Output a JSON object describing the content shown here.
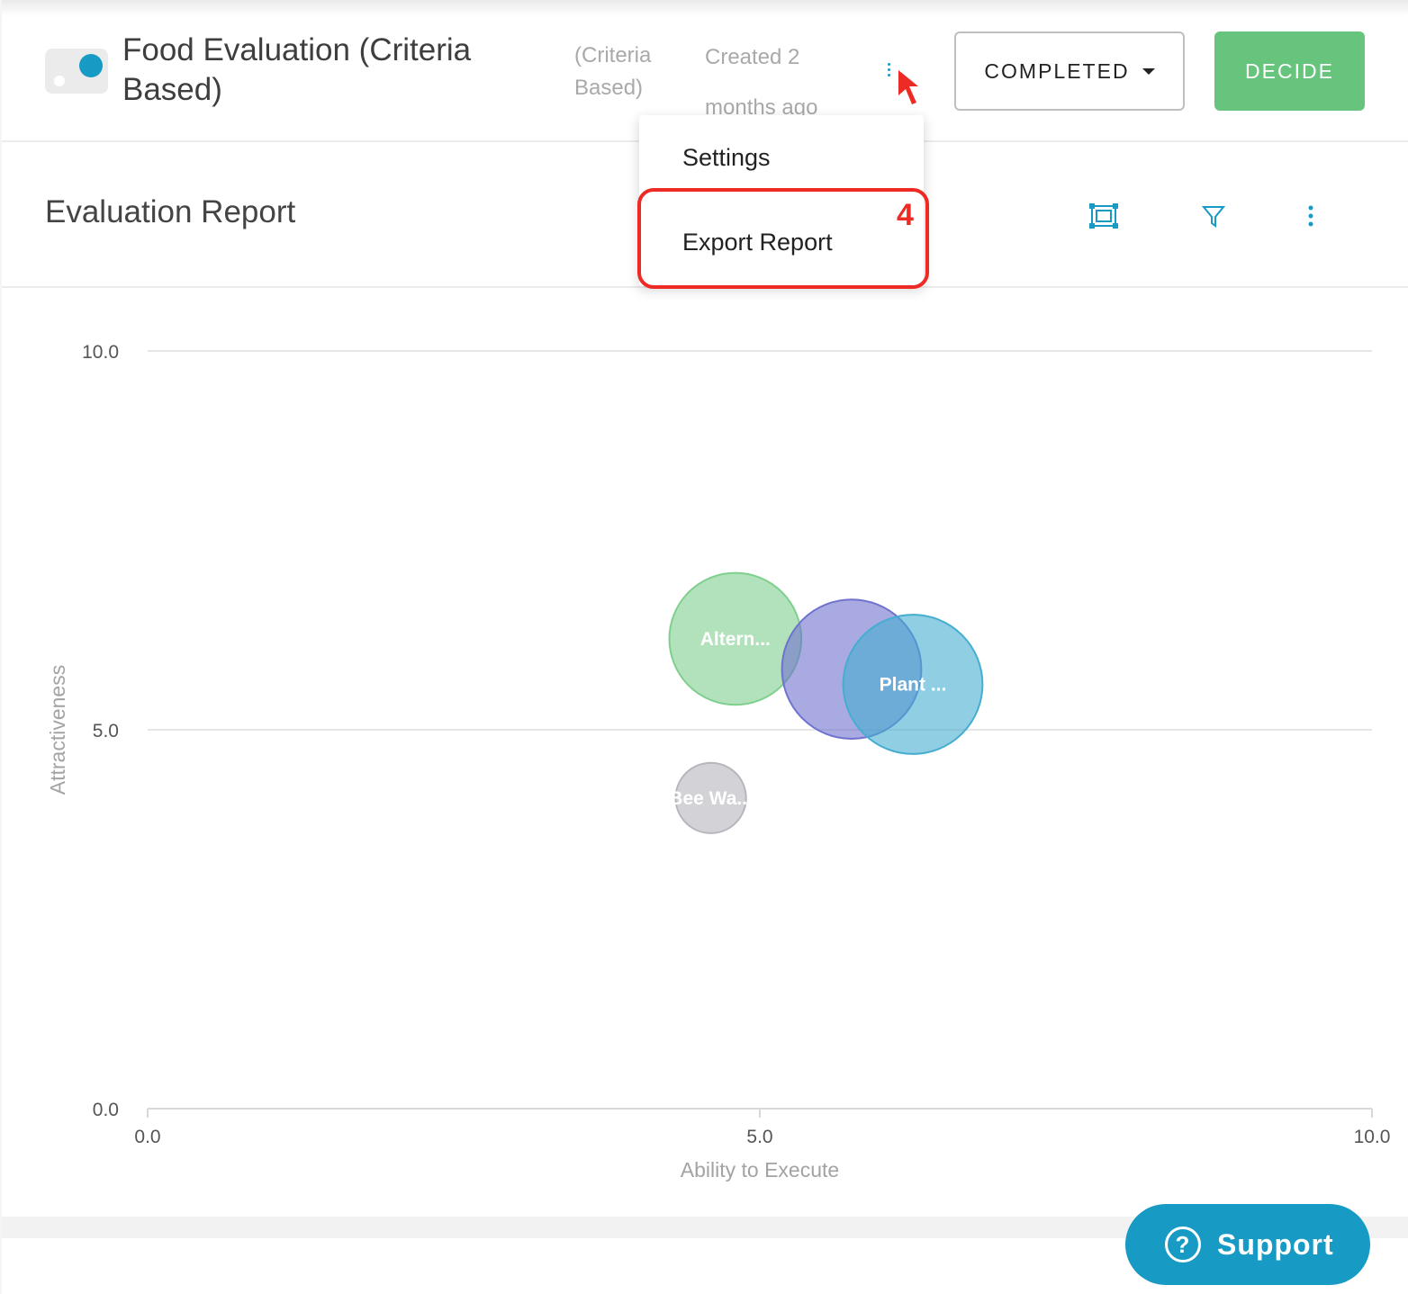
{
  "header": {
    "title": "Food Evaluation (Criteria Based)",
    "subtitle": "(Criteria Based)",
    "created": "Created 2 months ago",
    "status_button": "COMPLETED",
    "decide_button": "DECIDE"
  },
  "section": {
    "title": "Evaluation Report"
  },
  "menu": {
    "items": [
      {
        "label": "Settings"
      },
      {
        "label": "Export Report"
      }
    ],
    "step_number": "4"
  },
  "support": {
    "label": "Support",
    "icon": "?"
  },
  "colors": {
    "accent": "#179ac4",
    "decide": "#66c47d",
    "highlight": "#ee2a24"
  },
  "chart_data": {
    "type": "scatter",
    "xlabel": "Ability to Execute",
    "ylabel": "Attractiveness",
    "xlim": [
      0,
      10
    ],
    "ylim": [
      0,
      10
    ],
    "x_ticks": [
      "0.0",
      "5.0",
      "10.0"
    ],
    "y_ticks": [
      "0.0",
      "5.0",
      "10.0"
    ],
    "grid": true,
    "series": [
      {
        "label": "Altern...",
        "x": 4.8,
        "y": 6.2,
        "size": 0.9,
        "color": "#7fcf8d"
      },
      {
        "label": "",
        "x": 5.75,
        "y": 5.8,
        "size": 0.95,
        "color": "#6f72cf"
      },
      {
        "label": "Plant ...",
        "x": 6.25,
        "y": 5.6,
        "size": 0.95,
        "color": "#45aed0"
      },
      {
        "label": "Bee Wa...",
        "x": 4.6,
        "y": 4.1,
        "size": 0.48,
        "color": "#b6b5bd"
      }
    ]
  }
}
